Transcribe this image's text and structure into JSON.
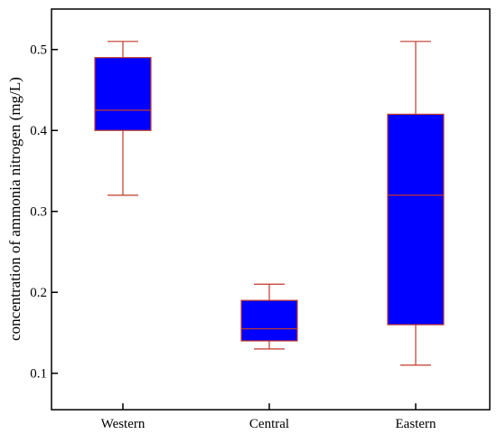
{
  "chart_data": {
    "type": "box",
    "title": "",
    "xlabel": "",
    "ylabel": "concentration of ammonia nitrogen (mg/L)",
    "ylim": [
      0.055,
      0.55
    ],
    "yticks": [
      0.1,
      0.2,
      0.3,
      0.4,
      0.5
    ],
    "ytick_labels": [
      "0.1",
      "0.2",
      "0.3",
      "0.4",
      "0.5"
    ],
    "categories": [
      "Western",
      "Central",
      "Eastern"
    ],
    "boxes": [
      {
        "category": "Western",
        "min": 0.32,
        "q1": 0.4,
        "median": 0.425,
        "q3": 0.49,
        "max": 0.51
      },
      {
        "category": "Central",
        "min": 0.13,
        "q1": 0.14,
        "median": 0.155,
        "q3": 0.19,
        "max": 0.21
      },
      {
        "category": "Eastern",
        "min": 0.11,
        "q1": 0.16,
        "median": 0.32,
        "q3": 0.42,
        "max": 0.51
      }
    ],
    "box_color": "#0000ff",
    "line_color": "#c0392b",
    "grid": false
  }
}
